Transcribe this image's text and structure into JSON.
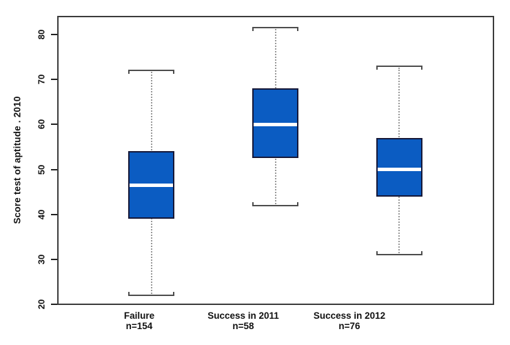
{
  "chart_data": {
    "type": "boxplot",
    "title": "",
    "ylabel": "Score test of aptitude . 2010",
    "xlabel": "",
    "ylim": [
      20,
      84
    ],
    "yticks": [
      20,
      30,
      40,
      50,
      60,
      70,
      80
    ],
    "grid": false,
    "legend": false,
    "categories": [
      "Failure",
      "Success in 2011",
      "Success in 2012"
    ],
    "series": [
      {
        "name": "Failure",
        "count_label": "n=154",
        "n": 154,
        "whisker_low": 22,
        "q1": 39,
        "median": 46.5,
        "q3": 54,
        "whisker_high": 72
      },
      {
        "name": "Success in 2011",
        "count_label": "n=58",
        "n": 58,
        "whisker_low": 42,
        "q1": 52.5,
        "median": 60,
        "q3": 68,
        "whisker_high": 81.5
      },
      {
        "name": "Success in 2012",
        "count_label": "n=76",
        "n": 76,
        "whisker_low": 31,
        "q1": 44,
        "median": 50,
        "q3": 57,
        "whisker_high": 73
      }
    ],
    "colors": {
      "box_fill": "#0b5cc2",
      "box_border": "#161838",
      "median_line": "#ffffff",
      "whisker": "#999999",
      "whisker_cap": "#4d4d4d",
      "axis_frame": "#3b3b3b",
      "tick": "#222222",
      "text": "#111111",
      "background": "#ffffff"
    }
  }
}
